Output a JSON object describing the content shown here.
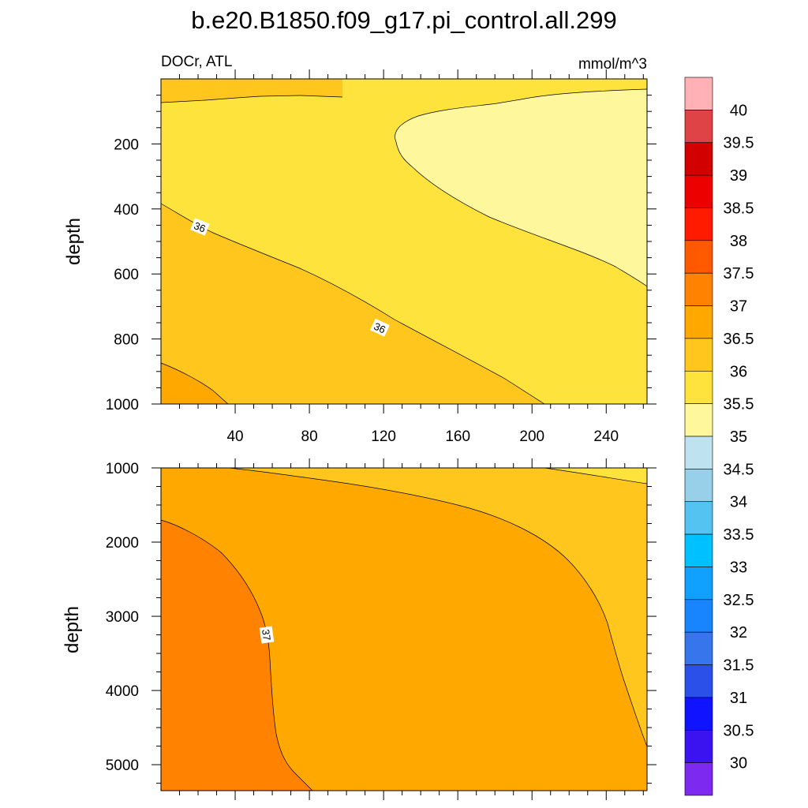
{
  "chart_data": {
    "type": "contour",
    "title": "b.e20.B1850.f09_g17.pi_control.all.299",
    "variable_label": "DOCr, ATL",
    "units_label": "mmol/m^3",
    "panels": [
      {
        "name": "upper",
        "ylabel": "depth",
        "xlim": [
          0,
          262
        ],
        "ylim": [
          0,
          1000
        ],
        "y_reversed": true,
        "xticks": [
          40,
          80,
          120,
          160,
          200,
          240
        ],
        "yticks": [
          200,
          400,
          600,
          800,
          1000
        ],
        "contour_line_labels": [
          {
            "text": "36",
            "x": 21,
            "y": 455
          },
          {
            "text": "36",
            "x": 118,
            "y": 765
          }
        ],
        "regions": [
          {
            "level": "35.5-36",
            "description": "bulk surface/upper water"
          },
          {
            "level": "35-35.5",
            "description": "low-DOCr tongue, x 125-262, y 40-640"
          },
          {
            "level": "36-36.5",
            "description": "near-surface strip at x<100 and deeper layer below sloping 36 isoline"
          },
          {
            "level": "36.5-37",
            "description": "bottom-left corner"
          }
        ]
      },
      {
        "name": "lower",
        "ylabel": "depth",
        "xlim": [
          0,
          262
        ],
        "ylim": [
          1000,
          5350
        ],
        "y_reversed": true,
        "xticks": [
          40,
          80,
          120,
          160,
          200,
          240
        ],
        "yticks": [
          1000,
          2000,
          3000,
          4000,
          5000
        ],
        "contour_line_labels": [
          {
            "text": "37",
            "x": 57,
            "y": 3250
          }
        ],
        "regions": [
          {
            "level": "36-36.5",
            "description": "upper-right band"
          },
          {
            "level": "36.5-37",
            "description": "central deep water"
          },
          {
            "level": "37-37.5",
            "description": "western deep water, x<60"
          },
          {
            "level": "35.5-36",
            "description": "top-right sliver"
          }
        ]
      }
    ],
    "colorbar": {
      "labels": [
        "30",
        "30.5",
        "31",
        "31.5",
        "32",
        "32.5",
        "33",
        "33.5",
        "34",
        "34.5",
        "35",
        "35.5",
        "36",
        "36.5",
        "37",
        "37.5",
        "38",
        "38.5",
        "39",
        "39.5",
        "40"
      ],
      "colors": [
        "#ffb1b5",
        "#e04345",
        "#d20000",
        "#ec0000",
        "#ff1b00",
        "#ff5a00",
        "#ff8200",
        "#ffa800",
        "#ffc71d",
        "#ffe33d",
        "#fff79b",
        "#bfe2f1",
        "#98d0e9",
        "#55c3f1",
        "#00c1ff",
        "#10a1ff",
        "#1885ff",
        "#3775ec",
        "#2a50e9",
        "#0f13ff",
        "#3b13f0",
        "#7d29ef"
      ]
    },
    "fill_colors": {
      "c35": "#fff79b",
      "c355": "#ffe33d",
      "c36": "#ffc71d",
      "c365": "#ffa800",
      "c37": "#ff8200"
    }
  }
}
